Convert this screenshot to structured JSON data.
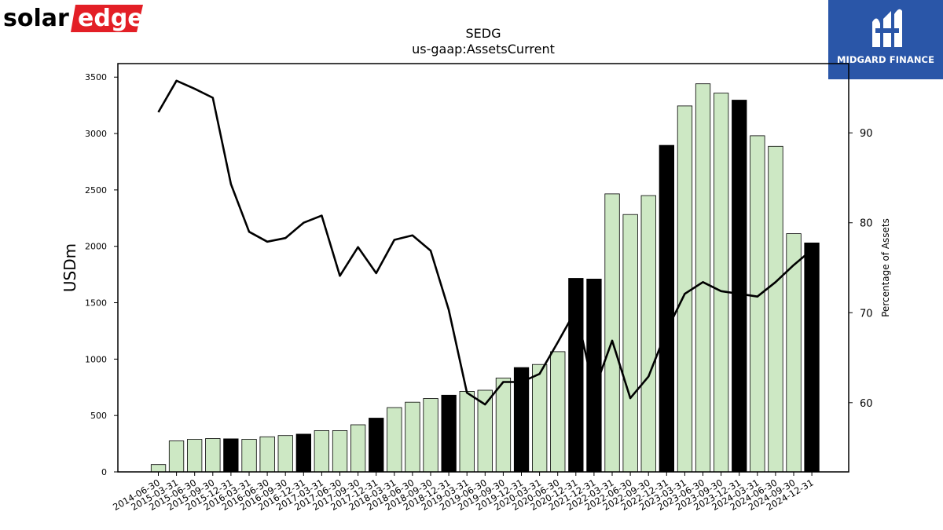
{
  "brand": {
    "left_logo": {
      "part1": "solar",
      "part2": "edge",
      "color": "#e31f26"
    },
    "right_logo": {
      "text": "MIDGARD FINANCE",
      "background": "#2a56a8"
    }
  },
  "chart_data": {
    "type": "bar",
    "title": "SEDG",
    "subtitle": "us-gaap:AssetsCurrent",
    "ylabel": "USDm",
    "y2label": "Percentage of Assets",
    "ylim": [
      0,
      3620
    ],
    "y2lim": [
      52.3,
      97.7
    ],
    "yticks": [
      0,
      500,
      1000,
      1500,
      2000,
      2500,
      3000,
      3500
    ],
    "y2ticks": [
      60,
      70,
      80,
      90
    ],
    "grid": false,
    "colors": {
      "bar_quarterly": "#cde8c4",
      "bar_annual": "#000000",
      "edge": "#000000",
      "line": "#000000"
    },
    "categories": [
      "2014-06-30",
      "2015-03-31",
      "2015-06-30",
      "2015-09-30",
      "2015-12-31",
      "2016-03-31",
      "2016-06-30",
      "2016-09-30",
      "2016-12-31",
      "2017-03-31",
      "2017-06-30",
      "2017-09-30",
      "2017-12-31",
      "2018-03-31",
      "2018-06-30",
      "2018-09-30",
      "2018-12-31",
      "2019-03-31",
      "2019-06-30",
      "2019-09-30",
      "2019-12-31",
      "2020-03-31",
      "2020-06-30",
      "2020-12-31",
      "2021-12-31",
      "2022-03-31",
      "2022-06-30",
      "2022-09-30",
      "2022-12-31",
      "2023-03-31",
      "2023-06-30",
      "2023-09-30",
      "2023-12-31",
      "2024-03-31",
      "2024-06-30",
      "2024-09-30",
      "2024-12-31"
    ],
    "annual": [
      false,
      false,
      false,
      false,
      true,
      false,
      false,
      false,
      true,
      false,
      false,
      false,
      true,
      false,
      false,
      false,
      true,
      false,
      false,
      false,
      true,
      false,
      false,
      true,
      true,
      false,
      false,
      false,
      true,
      false,
      false,
      false,
      true,
      false,
      false,
      false,
      true
    ],
    "series": [
      {
        "kind": "bar",
        "values": [
          65,
          275,
          288,
          296,
          293,
          289,
          311,
          322,
          335,
          366,
          366,
          418,
          477,
          570,
          618,
          651,
          680,
          714,
          724,
          832,
          925,
          952,
          1066,
          1716,
          1710,
          2465,
          2282,
          2450,
          2895,
          3245,
          3441,
          3358,
          3296,
          2980,
          2887,
          2112,
          2030
        ]
      },
      {
        "kind": "line",
        "axis": "right",
        "values": [
          92.3,
          95.8,
          94.9,
          93.9,
          84.3,
          79.0,
          77.9,
          78.3,
          80.0,
          80.8,
          74.1,
          77.3,
          74.4,
          78.1,
          78.6,
          76.9,
          70.3,
          61.1,
          59.8,
          62.3,
          62.3,
          63.2,
          66.7,
          70.3,
          61.3,
          66.9,
          60.5,
          62.9,
          68.0,
          72.1,
          73.4,
          72.4,
          72.1,
          71.8,
          73.4,
          75.3,
          77.0
        ]
      }
    ]
  }
}
